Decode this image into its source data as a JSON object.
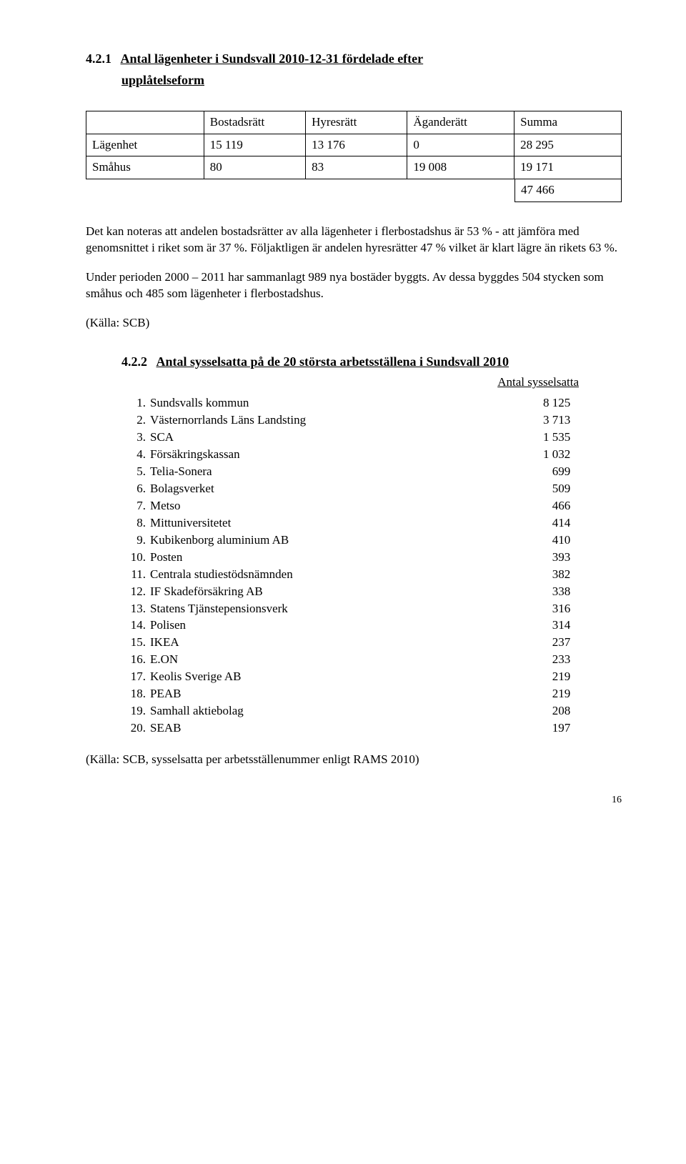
{
  "section1": {
    "heading_num": "4.2.1",
    "heading_text": "Antal lägenheter i Sundsvall 2010-12-31 fördelade efter",
    "heading_text_line2": "upplåtelseform",
    "table": {
      "headers": [
        "",
        "Bostadsrätt",
        "Hyresrätt",
        "Äganderätt",
        "Summa"
      ],
      "rows": [
        [
          "Lägenhet",
          "15 119",
          "13 176",
          "0",
          "28 295"
        ],
        [
          "Småhus",
          "80",
          "83",
          "19 008",
          "19 171"
        ]
      ],
      "total": "47 466"
    },
    "para1": "Det kan noteras att andelen bostadsrätter av alla lägenheter i flerbostadshus är 53 % - att jämföra med genomsnittet i riket som är 37 %. Följaktligen är andelen hyresrätter 47 % vilket är klart lägre än rikets 63 %.",
    "para2": "Under perioden 2000 – 2011 har sammanlagt 989 nya bostäder byggts. Av dessa byggdes 504 stycken som småhus och 485 som lägenheter i flerbostadshus.",
    "source": "(Källa: SCB)"
  },
  "section2": {
    "heading_num": "4.2.2",
    "heading_text": "Antal sysselsatta på de 20 största arbetsställena i Sundsvall 2010",
    "subhead": "Antal sysselsatta",
    "items": [
      {
        "n": "1.",
        "name": "Sundsvalls kommun",
        "val": "8 125"
      },
      {
        "n": "2.",
        "name": "Västernorrlands Läns Landsting",
        "val": "3 713"
      },
      {
        "n": "3.",
        "name": "SCA",
        "val": "1 535"
      },
      {
        "n": "4.",
        "name": "Försäkringskassan",
        "val": "1 032"
      },
      {
        "n": "5.",
        "name": "Telia-Sonera",
        "val": "   699"
      },
      {
        "n": "6.",
        "name": "Bolagsverket",
        "val": "   509"
      },
      {
        "n": "7.",
        "name": "Metso",
        "val": "   466"
      },
      {
        "n": "8.",
        "name": "Mittuniversitetet",
        "val": "   414"
      },
      {
        "n": "9.",
        "name": "Kubikenborg aluminium AB",
        "val": "   410"
      },
      {
        "n": "10.",
        "name": "Posten",
        "val": "   393"
      },
      {
        "n": "11.",
        "name": "Centrala studiestödsnämnden",
        "val": "   382"
      },
      {
        "n": "12.",
        "name": "IF Skadeförsäkring AB",
        "val": "   338"
      },
      {
        "n": "13.",
        "name": "Statens Tjänstepensionsverk",
        "val": "   316"
      },
      {
        "n": "14.",
        "name": "Polisen",
        "val": "   314"
      },
      {
        "n": "15.",
        "name": "IKEA",
        "val": "   237"
      },
      {
        "n": "16.",
        "name": "E.ON",
        "val": "   233"
      },
      {
        "n": "17.",
        "name": "Keolis Sverige AB",
        "val": "   219"
      },
      {
        "n": "18.",
        "name": "PEAB",
        "val": "   219"
      },
      {
        "n": "19.",
        "name": "Samhall aktiebolag",
        "val": "   208"
      },
      {
        "n": "20.",
        "name": "SEAB",
        "val": "   197"
      }
    ],
    "source": "(Källa: SCB, sysselsatta per arbetsställenummer enligt RAMS 2010)"
  },
  "page_number": "16"
}
